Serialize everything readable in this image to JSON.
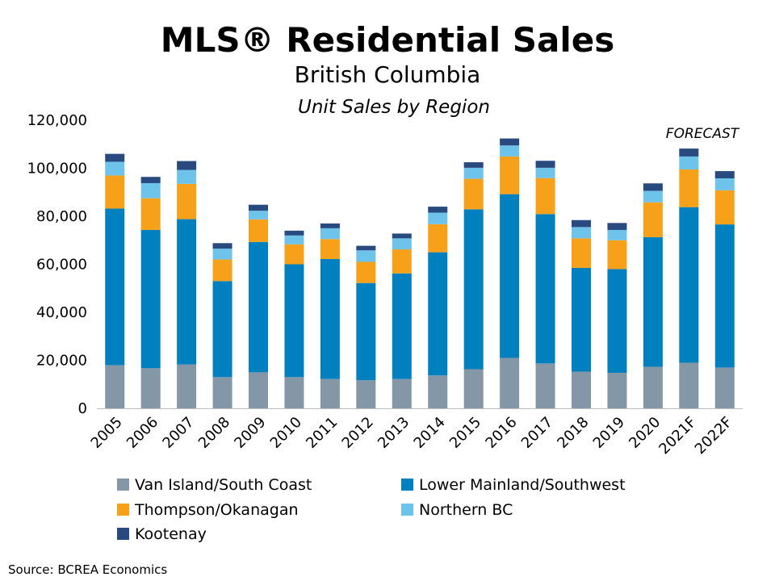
{
  "chart_data": {
    "type": "bar",
    "stacked": true,
    "title": "MLS® Residential Sales",
    "subtitle": "British Columbia",
    "subtitle2": "Unit Sales by Region",
    "annotation": "FORECAST",
    "source": "Source: BCREA Economics",
    "ylim": [
      0,
      120000
    ],
    "yticks": [
      "120,000",
      "100,000",
      "80,000",
      "60,000",
      "40,000",
      "20,000",
      "0"
    ],
    "ytick_values": [
      120000,
      100000,
      80000,
      60000,
      40000,
      20000,
      0
    ],
    "categories": [
      "2005",
      "2006",
      "2007",
      "2008",
      "2009",
      "2010",
      "2011",
      "2012",
      "2013",
      "2014",
      "2015",
      "2016",
      "2017",
      "2018",
      "2019",
      "2020",
      "2021F",
      "2022F"
    ],
    "legend_position": "bottom",
    "grid": false,
    "series": [
      {
        "name": "Van Island/South Coast",
        "color": "#8497a7",
        "values": [
          18000,
          16700,
          18300,
          13000,
          15000,
          13000,
          12200,
          11700,
          12200,
          13700,
          16300,
          21000,
          18700,
          15300,
          14800,
          17300,
          19000,
          17000
        ]
      },
      {
        "name": "Lower Mainland/Southwest",
        "color": "#0080be",
        "values": [
          65200,
          57600,
          60500,
          40000,
          54300,
          47000,
          50000,
          40500,
          44000,
          51300,
          66600,
          68200,
          62200,
          43200,
          43200,
          54000,
          64800,
          59600
        ]
      },
      {
        "name": "Thompson/Okanagan",
        "color": "#f7a11a",
        "values": [
          13800,
          13200,
          14700,
          9000,
          9400,
          8300,
          8300,
          8800,
          10000,
          11700,
          12700,
          15700,
          15000,
          12300,
          12000,
          14500,
          15700,
          14200
        ]
      },
      {
        "name": "Northern BC",
        "color": "#6dc3ea",
        "values": [
          5700,
          6300,
          5800,
          4500,
          3600,
          3700,
          4500,
          4800,
          4600,
          4800,
          4600,
          4600,
          4300,
          4700,
          4300,
          4800,
          5400,
          5000
        ]
      },
      {
        "name": "Kootenay",
        "color": "#284a7e",
        "values": [
          3300,
          2600,
          3700,
          2300,
          2500,
          2000,
          2000,
          1900,
          2000,
          2500,
          2300,
          2900,
          2900,
          2900,
          2900,
          3100,
          3300,
          3000
        ]
      }
    ]
  }
}
